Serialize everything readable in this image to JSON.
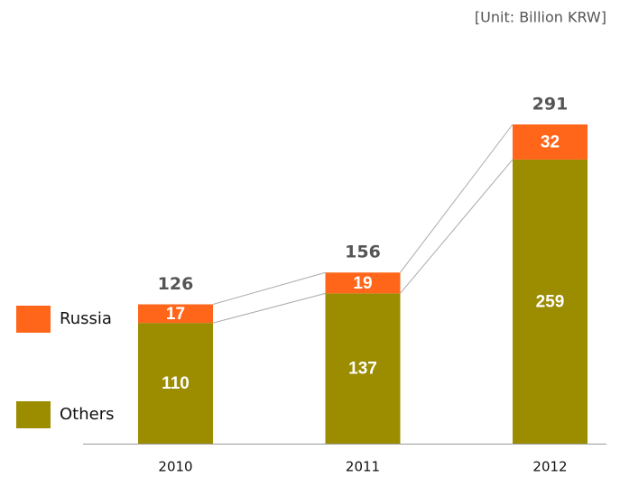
{
  "chart_data": {
    "type": "stacked_bar",
    "subtitle": "[Unit: Billion KRW]",
    "categories": [
      "2010",
      "2011",
      "2012"
    ],
    "series": [
      {
        "name": "Others",
        "color": "#9b8c00",
        "values": [
          110,
          137,
          259
        ]
      },
      {
        "name": "Russia",
        "color": "#ff661a",
        "values": [
          17,
          19,
          32
        ]
      }
    ],
    "totals": [
      126,
      156,
      291
    ]
  }
}
